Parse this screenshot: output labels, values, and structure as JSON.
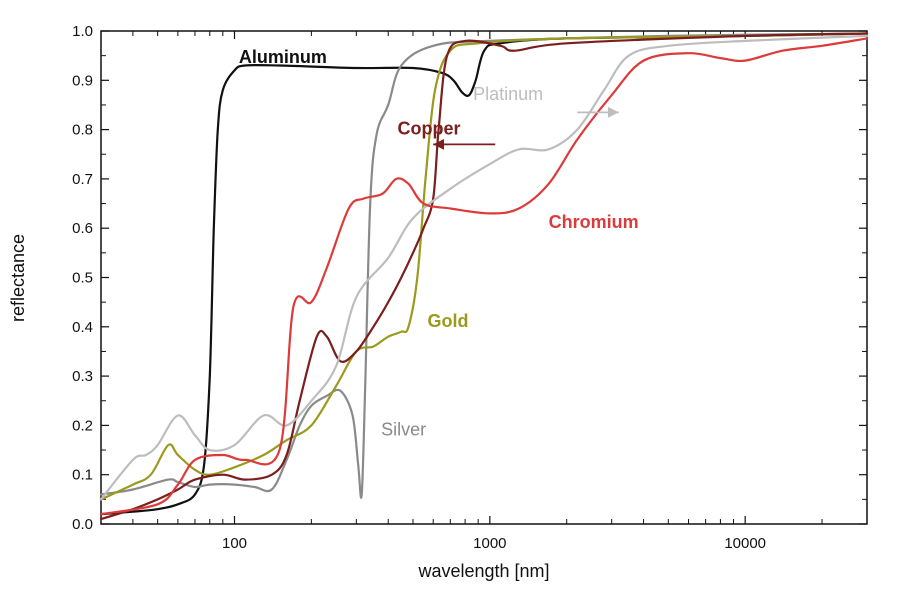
{
  "chart_data": {
    "type": "line",
    "xscale": "log",
    "xlabel": "wavelength [nm]",
    "ylabel": "reflectance",
    "xlim": [
      30,
      30000
    ],
    "ylim": [
      0.0,
      1.0
    ],
    "xticks": [
      {
        "value": 100,
        "label": "100"
      },
      {
        "value": 1000,
        "label": "1000"
      },
      {
        "value": 10000,
        "label": "10000"
      }
    ],
    "yticks": [
      {
        "value": 0.0,
        "label": "0.0"
      },
      {
        "value": 0.1,
        "label": "0.1"
      },
      {
        "value": 0.2,
        "label": "0.2"
      },
      {
        "value": 0.3,
        "label": "0.3"
      },
      {
        "value": 0.4,
        "label": "0.4"
      },
      {
        "value": 0.5,
        "label": "0.5"
      },
      {
        "value": 0.6,
        "label": "0.6"
      },
      {
        "value": 0.7,
        "label": "0.7"
      },
      {
        "value": 0.8,
        "label": "0.8"
      },
      {
        "value": 0.9,
        "label": "0.9"
      },
      {
        "value": 1.0,
        "label": "1.0"
      }
    ],
    "series": [
      {
        "name": "Aluminum",
        "color": "#111111",
        "label_at": [
          104,
          0.935
        ],
        "points": [
          [
            30,
            0.02
          ],
          [
            40,
            0.025
          ],
          [
            50,
            0.03
          ],
          [
            60,
            0.04
          ],
          [
            70,
            0.06
          ],
          [
            76,
            0.12
          ],
          [
            80,
            0.3
          ],
          [
            83,
            0.6
          ],
          [
            86,
            0.8
          ],
          [
            90,
            0.88
          ],
          [
            100,
            0.92
          ],
          [
            110,
            0.93
          ],
          [
            150,
            0.93
          ],
          [
            300,
            0.925
          ],
          [
            500,
            0.925
          ],
          [
            650,
            0.915
          ],
          [
            720,
            0.9
          ],
          [
            780,
            0.875
          ],
          [
            830,
            0.87
          ],
          [
            880,
            0.9
          ],
          [
            950,
            0.96
          ],
          [
            1100,
            0.975
          ],
          [
            2000,
            0.985
          ],
          [
            10000,
            0.99
          ],
          [
            30000,
            0.995
          ]
        ]
      },
      {
        "name": "Silver",
        "color": "#8a8a8a",
        "label_at": [
          375,
          0.18
        ],
        "points": [
          [
            30,
            0.06
          ],
          [
            40,
            0.07
          ],
          [
            55,
            0.09
          ],
          [
            60,
            0.085
          ],
          [
            70,
            0.075
          ],
          [
            80,
            0.08
          ],
          [
            100,
            0.08
          ],
          [
            120,
            0.075
          ],
          [
            140,
            0.07
          ],
          [
            160,
            0.13
          ],
          [
            180,
            0.2
          ],
          [
            200,
            0.24
          ],
          [
            230,
            0.26
          ],
          [
            260,
            0.27
          ],
          [
            290,
            0.22
          ],
          [
            305,
            0.12
          ],
          [
            315,
            0.06
          ],
          [
            325,
            0.28
          ],
          [
            340,
            0.65
          ],
          [
            360,
            0.79
          ],
          [
            400,
            0.85
          ],
          [
            450,
            0.93
          ],
          [
            600,
            0.97
          ],
          [
            1000,
            0.98
          ],
          [
            5000,
            0.99
          ],
          [
            30000,
            0.995
          ]
        ]
      },
      {
        "name": "Gold",
        "color": "#9a9a1e",
        "label_at": [
          570,
          0.4
        ],
        "points": [
          [
            30,
            0.05
          ],
          [
            40,
            0.08
          ],
          [
            47,
            0.1
          ],
          [
            55,
            0.16
          ],
          [
            60,
            0.14
          ],
          [
            70,
            0.11
          ],
          [
            80,
            0.1
          ],
          [
            100,
            0.115
          ],
          [
            130,
            0.14
          ],
          [
            160,
            0.17
          ],
          [
            200,
            0.2
          ],
          [
            250,
            0.28
          ],
          [
            300,
            0.35
          ],
          [
            350,
            0.36
          ],
          [
            400,
            0.38
          ],
          [
            450,
            0.39
          ],
          [
            480,
            0.4
          ],
          [
            520,
            0.5
          ],
          [
            560,
            0.7
          ],
          [
            610,
            0.88
          ],
          [
            700,
            0.96
          ],
          [
            900,
            0.975
          ],
          [
            2000,
            0.985
          ],
          [
            10000,
            0.99
          ],
          [
            30000,
            0.995
          ]
        ]
      },
      {
        "name": "Copper",
        "color": "#7a1e1e",
        "label_at": [
          435,
          0.79
        ],
        "points": [
          [
            30,
            0.01
          ],
          [
            40,
            0.03
          ],
          [
            50,
            0.05
          ],
          [
            60,
            0.07
          ],
          [
            70,
            0.09
          ],
          [
            90,
            0.1
          ],
          [
            110,
            0.09
          ],
          [
            140,
            0.1
          ],
          [
            160,
            0.14
          ],
          [
            180,
            0.25
          ],
          [
            210,
            0.38
          ],
          [
            230,
            0.38
          ],
          [
            260,
            0.33
          ],
          [
            300,
            0.35
          ],
          [
            350,
            0.4
          ],
          [
            400,
            0.45
          ],
          [
            450,
            0.5
          ],
          [
            500,
            0.55
          ],
          [
            550,
            0.6
          ],
          [
            600,
            0.66
          ],
          [
            630,
            0.8
          ],
          [
            680,
            0.95
          ],
          [
            800,
            0.98
          ],
          [
            1100,
            0.97
          ],
          [
            1250,
            0.96
          ],
          [
            2000,
            0.975
          ],
          [
            10000,
            0.99
          ],
          [
            30000,
            0.995
          ]
        ]
      },
      {
        "name": "Platinum",
        "color": "#bdbdbd",
        "label_at": [
          860,
          0.86
        ],
        "points": [
          [
            30,
            0.05
          ],
          [
            40,
            0.13
          ],
          [
            45,
            0.14
          ],
          [
            50,
            0.16
          ],
          [
            60,
            0.22
          ],
          [
            70,
            0.18
          ],
          [
            80,
            0.15
          ],
          [
            100,
            0.16
          ],
          [
            130,
            0.22
          ],
          [
            160,
            0.2
          ],
          [
            200,
            0.25
          ],
          [
            250,
            0.32
          ],
          [
            300,
            0.46
          ],
          [
            400,
            0.54
          ],
          [
            500,
            0.62
          ],
          [
            700,
            0.68
          ],
          [
            1000,
            0.73
          ],
          [
            1300,
            0.76
          ],
          [
            1700,
            0.76
          ],
          [
            2200,
            0.8
          ],
          [
            2800,
            0.88
          ],
          [
            3500,
            0.95
          ],
          [
            5000,
            0.97
          ],
          [
            10000,
            0.98
          ],
          [
            30000,
            0.99
          ]
        ]
      },
      {
        "name": "Chromium",
        "color": "#dd3a3a",
        "label_at": [
          1700,
          0.6
        ],
        "points": [
          [
            30,
            0.02
          ],
          [
            50,
            0.04
          ],
          [
            60,
            0.08
          ],
          [
            70,
            0.13
          ],
          [
            90,
            0.14
          ],
          [
            110,
            0.13
          ],
          [
            150,
            0.15
          ],
          [
            170,
            0.44
          ],
          [
            200,
            0.45
          ],
          [
            230,
            0.52
          ],
          [
            280,
            0.64
          ],
          [
            320,
            0.66
          ],
          [
            380,
            0.67
          ],
          [
            430,
            0.7
          ],
          [
            480,
            0.69
          ],
          [
            550,
            0.65
          ],
          [
            700,
            0.64
          ],
          [
            1000,
            0.63
          ],
          [
            1300,
            0.64
          ],
          [
            1700,
            0.69
          ],
          [
            2200,
            0.78
          ],
          [
            3000,
            0.87
          ],
          [
            4000,
            0.94
          ],
          [
            6000,
            0.955
          ],
          [
            8000,
            0.945
          ],
          [
            10000,
            0.94
          ],
          [
            14000,
            0.96
          ],
          [
            20000,
            0.97
          ],
          [
            30000,
            0.985
          ]
        ]
      }
    ],
    "annotations": [
      {
        "label": "Platinum",
        "arrow_from": [
          2200,
          0.835
        ],
        "arrow_to": [
          3200,
          0.835
        ]
      },
      {
        "label": "Copper",
        "arrow_from": [
          1050,
          0.77
        ],
        "arrow_to": [
          600,
          0.77
        ]
      }
    ]
  }
}
